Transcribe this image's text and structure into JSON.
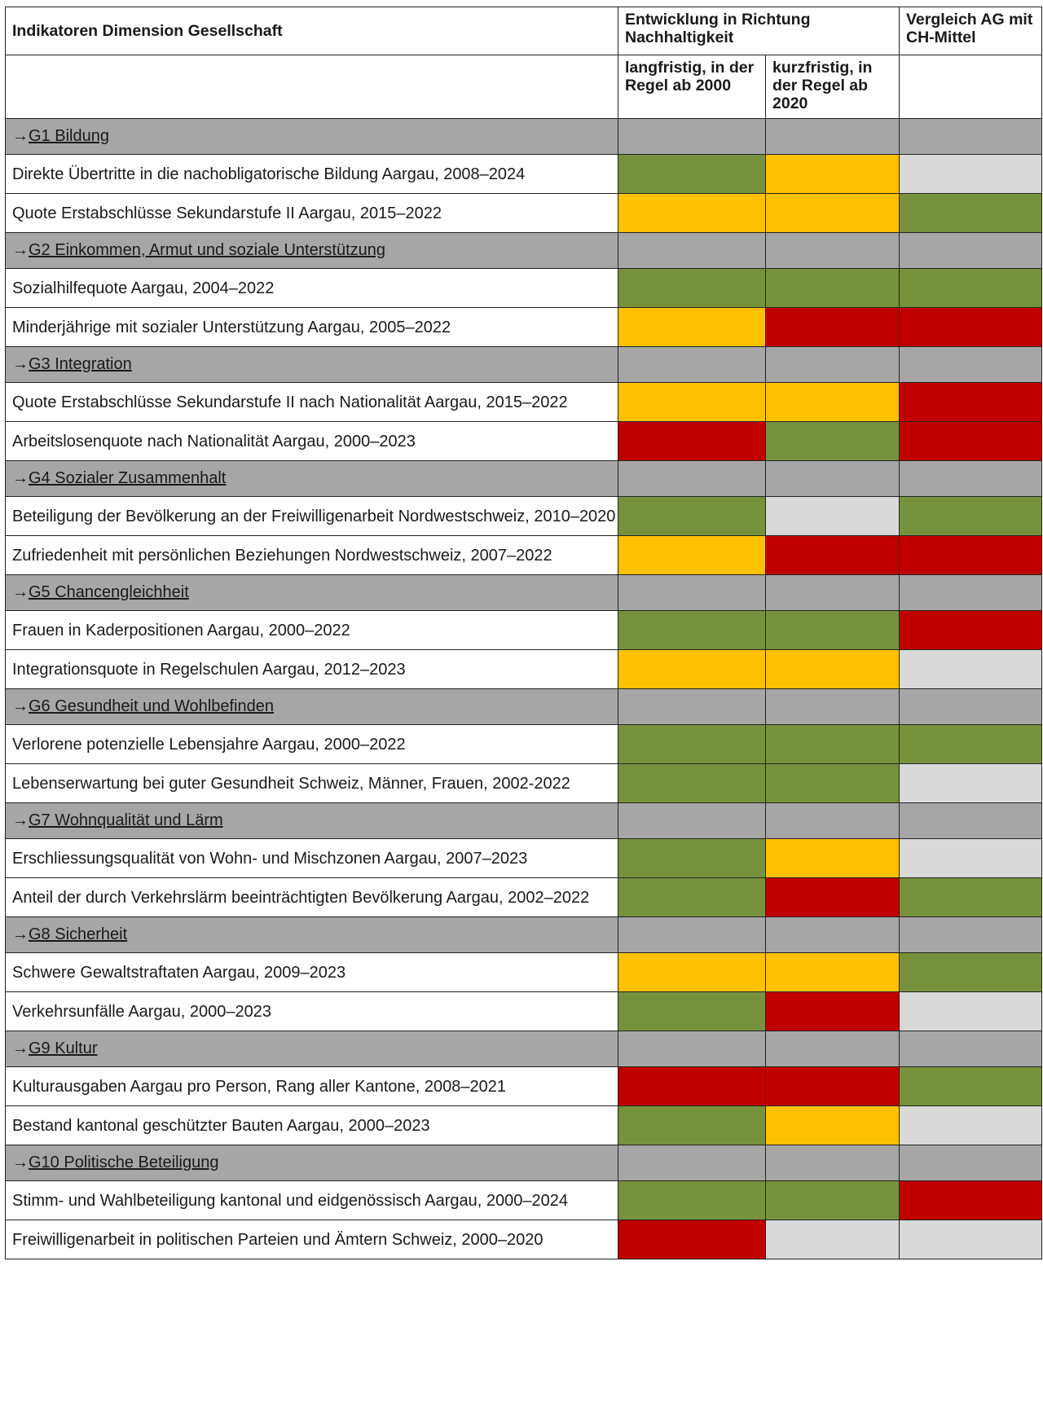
{
  "header": {
    "indicators": "Indikatoren Dimension Gesellschaft",
    "development": "Entwicklung in Richtung Nachhaltigkeit",
    "comparison": "Vergleich AG mit CH-Mittel",
    "long_term": "langfristig, in der Regel ab 2000",
    "short_term": "kurzfristig, in der Regel ab 2020"
  },
  "status_colors": {
    "green": "#76923c",
    "yellow": "#ffc000",
    "red": "#c00000",
    "lgray": "#d9d9d9",
    "gray": "#a6a6a6"
  },
  "groups": [
    {
      "arrow": "→",
      "title": "G1 Bildung",
      "rows": [
        {
          "label": "Direkte Übertritte in die nachobligatorische Bildung Aargau, 2008–2024",
          "status": [
            "green",
            "yellow",
            "lgray"
          ]
        },
        {
          "label": "Quote Erstabschlüsse Sekundarstufe II Aargau, 2015–2022",
          "status": [
            "yellow",
            "yellow",
            "green"
          ]
        }
      ]
    },
    {
      "arrow": "→",
      "title": "G2 Einkommen, Armut und soziale Unterstützung",
      "rows": [
        {
          "label": "Sozialhilfequote Aargau, 2004–2022",
          "status": [
            "green",
            "green",
            "green"
          ]
        },
        {
          "label": "Minderjährige mit sozialer Unterstützung Aargau, 2005–2022",
          "status": [
            "yellow",
            "red",
            "red"
          ]
        }
      ]
    },
    {
      "arrow": "→",
      "title": "G3 Integration",
      "rows": [
        {
          "label": "Quote Erstabschlüsse Sekundarstufe II nach Nationalität Aargau, 2015–2022",
          "status": [
            "yellow",
            "yellow",
            "red"
          ]
        },
        {
          "label": "Arbeitslosenquote nach Nationalität Aargau, 2000–2023",
          "status": [
            "red",
            "green",
            "red"
          ]
        }
      ]
    },
    {
      "arrow": "→",
      "title": "G4 Sozialer Zusammenhalt",
      "rows": [
        {
          "label": "Beteiligung der Bevölkerung an der Freiwilligenarbeit Nordwestschweiz, 2010–2020",
          "status": [
            "green",
            "lgray",
            "green"
          ]
        },
        {
          "label": "Zufriedenheit mit persönlichen Beziehungen Nordwestschweiz, 2007–2022",
          "status": [
            "yellow",
            "red",
            "red"
          ]
        }
      ]
    },
    {
      "arrow": "→",
      "title": "G5 Chancengleichheit",
      "rows": [
        {
          "label": "Frauen in Kaderpositionen Aargau, 2000–2022",
          "status": [
            "green",
            "green",
            "red"
          ]
        },
        {
          "label": "Integrationsquote in Regelschulen Aargau, 2012–2023",
          "status": [
            "yellow",
            "yellow",
            "lgray"
          ]
        }
      ]
    },
    {
      "arrow": "→",
      "title": "G6 Gesundheit und Wohlbefinden",
      "rows": [
        {
          "label": "Verlorene potenzielle Lebensjahre Aargau, 2000–2022",
          "status": [
            "green",
            "green",
            "green"
          ]
        },
        {
          "label": "Lebenserwartung bei guter Gesundheit Schweiz, Männer, Frauen, 2002-2022",
          "status": [
            "green",
            "green",
            "lgray"
          ]
        }
      ]
    },
    {
      "arrow": "→",
      "title": "G7 Wohnqualität und Lärm",
      "rows": [
        {
          "label": "Erschliessungsqualität von Wohn- und Mischzonen Aargau, 2007–2023",
          "status": [
            "green",
            "yellow",
            "lgray"
          ]
        },
        {
          "label": "Anteil der durch Verkehrslärm beeinträchtigten Bevölkerung Aargau, 2002–2022",
          "status": [
            "green",
            "red",
            "green"
          ]
        }
      ]
    },
    {
      "arrow": "→",
      "title": "G8 Sicherheit",
      "rows": [
        {
          "label": "Schwere Gewaltstraftaten Aargau, 2009–2023",
          "status": [
            "yellow",
            "yellow",
            "green"
          ]
        },
        {
          "label": "Verkehrsunfälle Aargau, 2000–2023",
          "status": [
            "green",
            "red",
            "lgray"
          ]
        }
      ]
    },
    {
      "arrow": "→",
      "title": "G9 Kultur",
      "rows": [
        {
          "label": "Kulturausgaben Aargau pro Person, Rang aller Kantone, 2008–2021",
          "status": [
            "red",
            "red",
            "green"
          ]
        },
        {
          "label": "Bestand kantonal geschützter Bauten Aargau, 2000–2023",
          "status": [
            "green",
            "yellow",
            "lgray"
          ]
        }
      ]
    },
    {
      "arrow": "→",
      "title": "G10 Politische Beteiligung",
      "rows": [
        {
          "label": "Stimm- und Wahlbeteiligung kantonal und eidgenössisch Aargau, 2000–2024",
          "status": [
            "green",
            "green",
            "red"
          ]
        },
        {
          "label": "Freiwilligenarbeit in politischen Parteien und Ämtern Schweiz, 2000–2020",
          "status": [
            "red",
            "lgray",
            "lgray"
          ]
        }
      ]
    }
  ]
}
